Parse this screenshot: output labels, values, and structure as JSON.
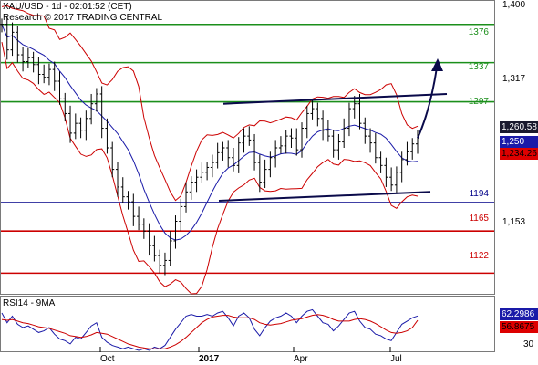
{
  "header": {
    "title": "XAU/USD - 1d - 02:01:52 (CET)",
    "source": "Research © 2017 TRADING CENTRAL"
  },
  "colors": {
    "price": "#000000",
    "bollinger": "#cc0000",
    "moving_average": "#1a1aa8",
    "resistance": "#1b8f1b",
    "support_blue": "#000088",
    "support_red": "#cc0000",
    "trend_lines": "#0a0a4a",
    "rsi": "#1a1aa8",
    "rsi_ma": "#cc0000"
  },
  "chart_data": [
    {
      "type": "candlestick",
      "title": "XAU/USD - 1d",
      "y_axis_ticks": [
        "1,400",
        "1,317",
        "1,153"
      ],
      "ylim": [
        1100,
        1400
      ],
      "x_axis_labels": [
        "Oct",
        "2017",
        "Apr",
        "Jul"
      ],
      "current_price": "1,260.58",
      "price_tags": [
        {
          "value": "1,260.58",
          "style": "dark"
        },
        {
          "value": "1,250",
          "style": "blue"
        },
        {
          "value": "1,234.26",
          "style": "red"
        }
      ],
      "horizontal_levels": [
        {
          "label": "1376",
          "value": 1376,
          "color": "green"
        },
        {
          "label": "1337",
          "value": 1337,
          "color": "green"
        },
        {
          "label": "1297",
          "value": 1297,
          "color": "green"
        },
        {
          "label": "1194",
          "value": 1194,
          "color": "blue"
        },
        {
          "label": "1165",
          "value": 1165,
          "color": "red"
        },
        {
          "label": "1122",
          "value": 1122,
          "color": "red"
        }
      ],
      "trend_channel": {
        "upper": [
          1295,
          1305
        ],
        "lower": [
          1196,
          1205
        ]
      },
      "close_series": [
        1376,
        1350,
        1368,
        1345,
        1338,
        1342,
        1335,
        1325,
        1322,
        1330,
        1318,
        1300,
        1285,
        1265,
        1275,
        1268,
        1280,
        1295,
        1305,
        1270,
        1250,
        1228,
        1210,
        1200,
        1195,
        1180,
        1172,
        1165,
        1150,
        1140,
        1130,
        1135,
        1155,
        1175,
        1190,
        1205,
        1215,
        1220,
        1225,
        1230,
        1235,
        1245,
        1250,
        1240,
        1232,
        1255,
        1262,
        1258,
        1235,
        1215,
        1228,
        1240,
        1250,
        1252,
        1262,
        1260,
        1248,
        1270,
        1285,
        1290,
        1280,
        1268,
        1262,
        1248,
        1256,
        1270,
        1290,
        1295,
        1275,
        1262,
        1255,
        1240,
        1232,
        1220,
        1212,
        1225,
        1238,
        1246,
        1254,
        1260
      ]
    },
    {
      "type": "line",
      "title": "RSI14 - 9MA",
      "y_axis_ticks": [
        "30"
      ],
      "ylim": [
        20,
        85
      ],
      "tags": [
        {
          "value": "62.2986",
          "style": "blue"
        },
        {
          "value": "56.8675",
          "style": "red"
        }
      ],
      "series": [
        {
          "name": "RSI14",
          "values": [
            66,
            54,
            62,
            52,
            48,
            50,
            46,
            42,
            44,
            48,
            40,
            34,
            32,
            28,
            36,
            34,
            42,
            50,
            54,
            36,
            30,
            26,
            24,
            22,
            24,
            22,
            20,
            22,
            20,
            24,
            22,
            26,
            36,
            46,
            54,
            62,
            64,
            62,
            62,
            64,
            62,
            66,
            68,
            60,
            50,
            62,
            66,
            60,
            46,
            38,
            48,
            56,
            60,
            62,
            66,
            62,
            54,
            62,
            68,
            70,
            62,
            54,
            52,
            44,
            50,
            58,
            66,
            68,
            56,
            48,
            46,
            40,
            38,
            34,
            32,
            42,
            52,
            56,
            60,
            62.3
          ]
        },
        {
          "name": "9MA",
          "values": [
            58,
            57,
            58,
            56,
            54,
            53,
            51,
            49,
            48,
            47,
            45,
            43,
            41,
            38,
            37,
            36,
            37,
            39,
            42,
            41,
            40,
            37,
            34,
            31,
            28,
            26,
            24,
            23,
            22,
            22,
            22,
            22,
            24,
            27,
            31,
            36,
            42,
            48,
            54,
            58,
            61,
            62,
            63,
            63,
            61,
            60,
            60,
            60,
            58,
            54,
            52,
            51,
            52,
            53,
            55,
            57,
            58,
            59,
            61,
            63,
            64,
            63,
            61,
            58,
            56,
            56,
            56,
            58,
            59,
            58,
            56,
            53,
            49,
            45,
            42,
            41,
            42,
            44,
            48,
            56.9
          ]
        }
      ]
    }
  ]
}
